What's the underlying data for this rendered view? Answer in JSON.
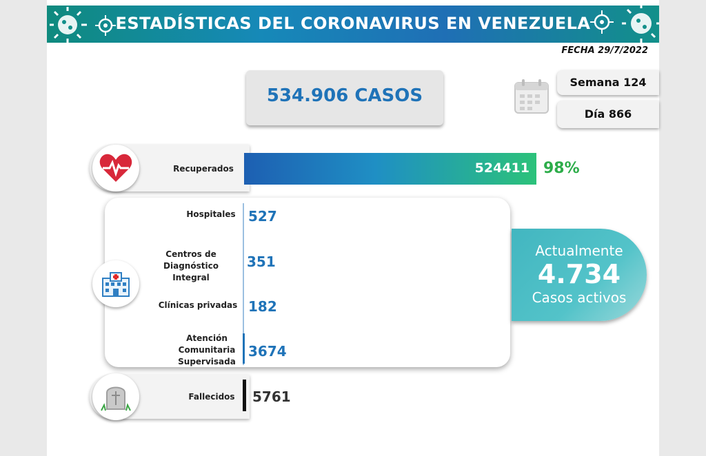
{
  "header": {
    "title": "ESTADÍSTICAS DEL CORONAVIRUS EN VENEZUELA",
    "fecha": "FECHA 29/7/2022"
  },
  "total": {
    "label": "534.906 CASOS"
  },
  "calendar": {
    "icon": "calendar-icon",
    "semana": "Semana 124",
    "dia": "Día 866"
  },
  "recuperados": {
    "label": "Recuperados",
    "value": "524411",
    "percent": "98%",
    "percent_value": 98,
    "icon": "heart-pulse-icon"
  },
  "centros": {
    "icon": "hospital-icon",
    "items": [
      {
        "label": "Hospitales",
        "value": "527"
      },
      {
        "label": "Centros de Diagnóstico Integral",
        "value": "351"
      },
      {
        "label": "Clínicas privadas",
        "value": "182"
      },
      {
        "label": "Atención Comunitaria Supervisada",
        "value": "3674"
      }
    ]
  },
  "activos": {
    "line1": "Actualmente",
    "value": "4.734",
    "line3": "Casos activos"
  },
  "fallecidos": {
    "label": "Fallecidos",
    "value": "5761",
    "icon": "tombstone-icon"
  },
  "colors": {
    "brand_blue": "#1f73b8",
    "bar_gradient_start": "#1d5fb2",
    "bar_gradient_end": "#2cc27a",
    "percent_green": "#2dad4a",
    "active_teal": "#42b6c0"
  }
}
